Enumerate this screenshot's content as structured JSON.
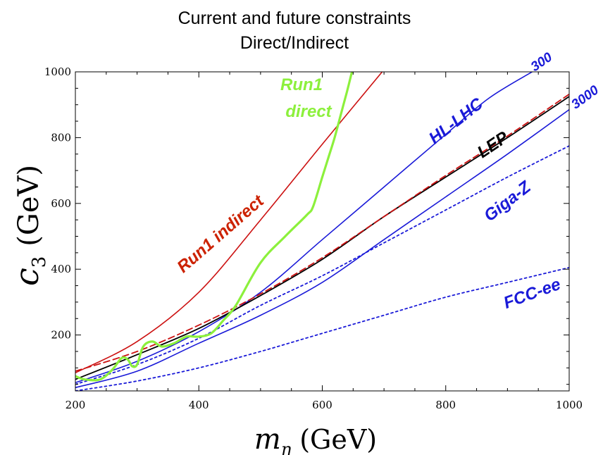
{
  "chart_data": {
    "type": "line",
    "title": "Current and future constraints",
    "subtitle": "Direct/Indirect",
    "xlabel": {
      "main": "m",
      "sub": "η",
      "unit": "(GeV)"
    },
    "ylabel": {
      "main": "c",
      "sub": "3",
      "unit": "(GeV)"
    },
    "xlim": [
      200,
      1000
    ],
    "ylim": [
      30,
      1000
    ],
    "xticks": [
      200,
      400,
      600,
      800,
      1000
    ],
    "yticks": [
      200,
      400,
      600,
      800,
      1000
    ],
    "grid": false,
    "series": [
      {
        "name": "Run1 indirect",
        "color": "#cc1111",
        "style": "solid",
        "width": 1.6,
        "points": [
          [
            200,
            85
          ],
          [
            300,
            180
          ],
          [
            400,
            330
          ],
          [
            500,
            550
          ],
          [
            600,
            780
          ],
          [
            697,
            1000
          ]
        ]
      },
      {
        "name": "Run1 direct",
        "color": "#8cf03c",
        "style": "solid",
        "width": 3.2,
        "points": [
          [
            200,
            75
          ],
          [
            215,
            65
          ],
          [
            240,
            65
          ],
          [
            260,
            95
          ],
          [
            275,
            130
          ],
          [
            285,
            125
          ],
          [
            292,
            105
          ],
          [
            300,
            110
          ],
          [
            310,
            165
          ],
          [
            325,
            180
          ],
          [
            340,
            165
          ],
          [
            360,
            175
          ],
          [
            380,
            195
          ],
          [
            400,
            195
          ],
          [
            420,
            205
          ],
          [
            440,
            245
          ],
          [
            460,
            290
          ],
          [
            500,
            420
          ],
          [
            540,
            500
          ],
          [
            575,
            565
          ],
          [
            585,
            590
          ],
          [
            600,
            680
          ],
          [
            610,
            740
          ],
          [
            620,
            800
          ],
          [
            630,
            870
          ],
          [
            640,
            940
          ],
          [
            648,
            1000
          ]
        ]
      },
      {
        "name": "HL-LHC 300",
        "color": "#1a1ad8",
        "style": "solid",
        "width": 1.6,
        "points": [
          [
            200,
            55
          ],
          [
            300,
            120
          ],
          [
            400,
            210
          ],
          [
            500,
            330
          ],
          [
            600,
            490
          ],
          [
            700,
            650
          ],
          [
            800,
            810
          ],
          [
            870,
            920
          ],
          [
            940,
            1000
          ]
        ]
      },
      {
        "name": "HL-LHC 3000",
        "color": "#1a1ad8",
        "style": "solid",
        "width": 1.6,
        "points": [
          [
            200,
            40
          ],
          [
            300,
            90
          ],
          [
            400,
            175
          ],
          [
            500,
            260
          ],
          [
            600,
            360
          ],
          [
            700,
            490
          ],
          [
            800,
            620
          ],
          [
            900,
            750
          ],
          [
            1000,
            885
          ]
        ]
      },
      {
        "name": "LEP",
        "color": "#000000",
        "style": "solid",
        "width": 1.8,
        "points": [
          [
            200,
            65
          ],
          [
            300,
            140
          ],
          [
            400,
            220
          ],
          [
            500,
            320
          ],
          [
            600,
            430
          ],
          [
            700,
            560
          ],
          [
            800,
            680
          ],
          [
            900,
            800
          ],
          [
            1000,
            925
          ]
        ]
      },
      {
        "name": "LEP dashed",
        "color": "#cc1111",
        "style": "dashed",
        "width": 1.8,
        "points": [
          [
            200,
            90
          ],
          [
            300,
            150
          ],
          [
            400,
            230
          ],
          [
            500,
            325
          ],
          [
            600,
            435
          ],
          [
            700,
            560
          ],
          [
            800,
            685
          ],
          [
            900,
            805
          ],
          [
            1000,
            932
          ]
        ]
      },
      {
        "name": "Giga-Z",
        "color": "#1a1ad8",
        "style": "dotted",
        "width": 1.8,
        "points": [
          [
            200,
            50
          ],
          [
            300,
            110
          ],
          [
            400,
            190
          ],
          [
            500,
            290
          ],
          [
            600,
            380
          ],
          [
            700,
            480
          ],
          [
            800,
            580
          ],
          [
            900,
            680
          ],
          [
            1000,
            775
          ]
        ]
      },
      {
        "name": "FCC-ee",
        "color": "#1a1ad8",
        "style": "dotted",
        "width": 1.8,
        "points": [
          [
            200,
            30
          ],
          [
            300,
            60
          ],
          [
            400,
            100
          ],
          [
            500,
            150
          ],
          [
            600,
            205
          ],
          [
            700,
            260
          ],
          [
            800,
            315
          ],
          [
            900,
            360
          ],
          [
            1000,
            405
          ]
        ]
      }
    ],
    "annotations": [
      {
        "text": "Run1 indirect",
        "color": "#cc2200"
      },
      {
        "text": "Run1",
        "color": "#8cf03c"
      },
      {
        "text": "direct",
        "color": "#8cf03c"
      },
      {
        "text": "HL-LHC",
        "color": "#1a1ad8"
      },
      {
        "text": "LEP",
        "color": "#000000"
      },
      {
        "text": "300",
        "color": "#1a1ad8"
      },
      {
        "text": "3000",
        "color": "#1a1ad8"
      },
      {
        "text": "Giga-Z",
        "color": "#1a1ad8"
      },
      {
        "text": "FCC-ee",
        "color": "#1a1ad8"
      }
    ]
  }
}
